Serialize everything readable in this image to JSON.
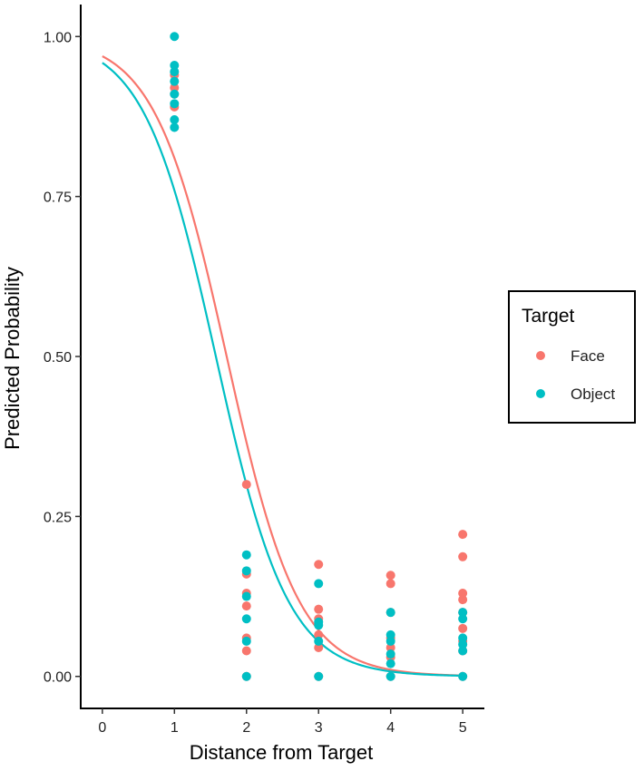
{
  "chart_data": {
    "type": "scatter",
    "title": "",
    "xlabel": "Distance from Target",
    "ylabel": "Predicted Probability",
    "xlim": [
      -0.3,
      5.3
    ],
    "ylim": [
      -0.05,
      1.05
    ],
    "x_ticks": [
      0,
      1,
      2,
      3,
      4,
      5
    ],
    "x_tick_labels": [
      "0",
      "1",
      "2",
      "3",
      "4",
      "5"
    ],
    "y_ticks": [
      0,
      0.25,
      0.5,
      0.75,
      1.0
    ],
    "y_tick_labels": [
      "0.00",
      "0.25",
      "0.50",
      "0.75",
      "1.00"
    ],
    "grid": false,
    "legend": {
      "title": "Target",
      "placement": "right",
      "entries": [
        "Face",
        "Object"
      ]
    },
    "series": [
      {
        "name": "Face",
        "color": "#F8766D",
        "points": [
          [
            1,
            0.94
          ],
          [
            1,
            0.92
          ],
          [
            1,
            0.91
          ],
          [
            1,
            0.89
          ],
          [
            2,
            0.3
          ],
          [
            2,
            0.16
          ],
          [
            2,
            0.13
          ],
          [
            2,
            0.11
          ],
          [
            2,
            0.06
          ],
          [
            2,
            0.04
          ],
          [
            2,
            0.0
          ],
          [
            3,
            0.175
          ],
          [
            3,
            0.105
          ],
          [
            3,
            0.09
          ],
          [
            3,
            0.065
          ],
          [
            3,
            0.045
          ],
          [
            3,
            0.0
          ],
          [
            4,
            0.158
          ],
          [
            4,
            0.145
          ],
          [
            4,
            0.1
          ],
          [
            4,
            0.06
          ],
          [
            4,
            0.045
          ],
          [
            4,
            0.03
          ],
          [
            4,
            0.0
          ],
          [
            5,
            0.222
          ],
          [
            5,
            0.187
          ],
          [
            5,
            0.13
          ],
          [
            5,
            0.12
          ],
          [
            5,
            0.1
          ],
          [
            5,
            0.075
          ],
          [
            5,
            0.055
          ],
          [
            5,
            0.04
          ],
          [
            5,
            0.0
          ]
        ],
        "fit": {
          "intercept": 3.45,
          "slope": -2.0
        }
      },
      {
        "name": "Object",
        "color": "#00BFC4",
        "points": [
          [
            1,
            1.0
          ],
          [
            1,
            0.955
          ],
          [
            1,
            0.945
          ],
          [
            1,
            0.93
          ],
          [
            1,
            0.91
          ],
          [
            1,
            0.895
          ],
          [
            1,
            0.87
          ],
          [
            1,
            0.858
          ],
          [
            2,
            0.19
          ],
          [
            2,
            0.165
          ],
          [
            2,
            0.125
          ],
          [
            2,
            0.09
          ],
          [
            2,
            0.055
          ],
          [
            2,
            0.0
          ],
          [
            3,
            0.145
          ],
          [
            3,
            0.085
          ],
          [
            3,
            0.08
          ],
          [
            3,
            0.055
          ],
          [
            3,
            0.0
          ],
          [
            4,
            0.1
          ],
          [
            4,
            0.065
          ],
          [
            4,
            0.055
          ],
          [
            4,
            0.035
          ],
          [
            4,
            0.02
          ],
          [
            4,
            0.0
          ],
          [
            5,
            0.1
          ],
          [
            5,
            0.09
          ],
          [
            5,
            0.06
          ],
          [
            5,
            0.05
          ],
          [
            5,
            0.04
          ],
          [
            5,
            0.0
          ]
        ],
        "fit": {
          "intercept": 3.15,
          "slope": -2.0
        }
      }
    ]
  }
}
